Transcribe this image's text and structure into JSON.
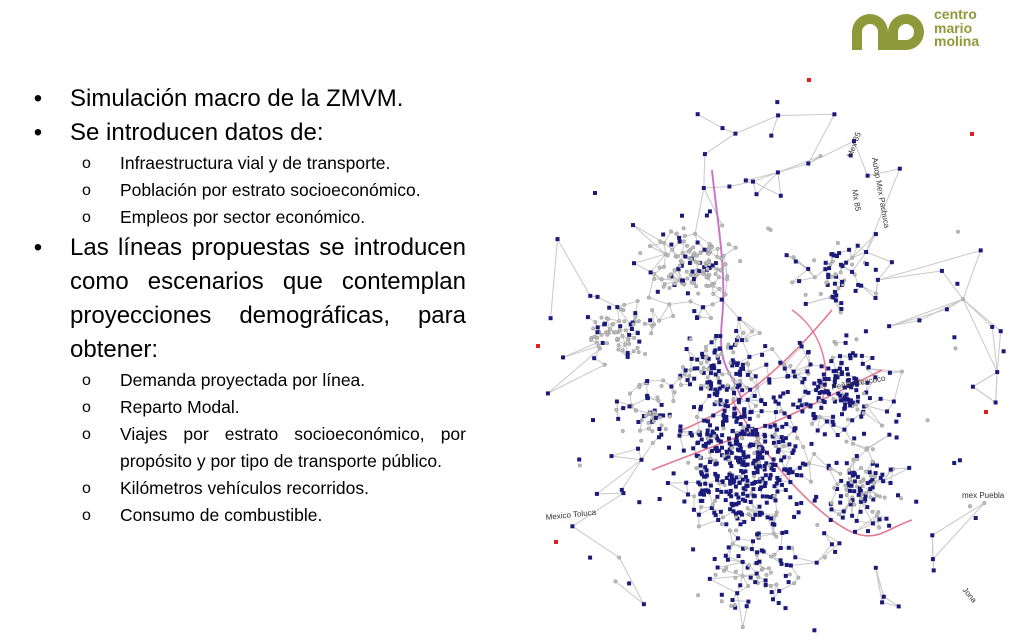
{
  "logo": {
    "line1": "centro",
    "line2": "mario",
    "line3": "molina",
    "color": "#8e9a3a"
  },
  "bullets": [
    {
      "text": "Simulación macro de la ZMVM."
    },
    {
      "text": "Se introducen datos de:",
      "sub": [
        "Infraestructura vial y de transporte.",
        "Población por estrato socioeconómico.",
        "Empleos por sector económico."
      ]
    },
    {
      "text": "Las líneas propuestas se introducen como escenarios que contemplan proyecciones demográficas, para obtener:",
      "sub": [
        "Demanda proyectada por línea.",
        "Reparto Modal.",
        "Viajes por estrato socioeconómico, por propósito y por tipo de transporte público.",
        "Kilómetros vehículos recorridos.",
        "Consumo de combustible."
      ]
    }
  ],
  "bullet_glyph": "•",
  "sub_bullet_glyph": "o",
  "map": {
    "labels": [
      "Mex 85",
      "Autop Mex Pachuca",
      "Mx 85",
      "Mexico Toluca",
      "mex Puebla",
      "Peñon Texcoco",
      "Jona"
    ],
    "node_color": "#1a1a7a",
    "edge_color": "#c8c8c8",
    "highlight_color": "#e06080",
    "line_color": "#c060c0",
    "endpoint_color": "#e02020"
  }
}
